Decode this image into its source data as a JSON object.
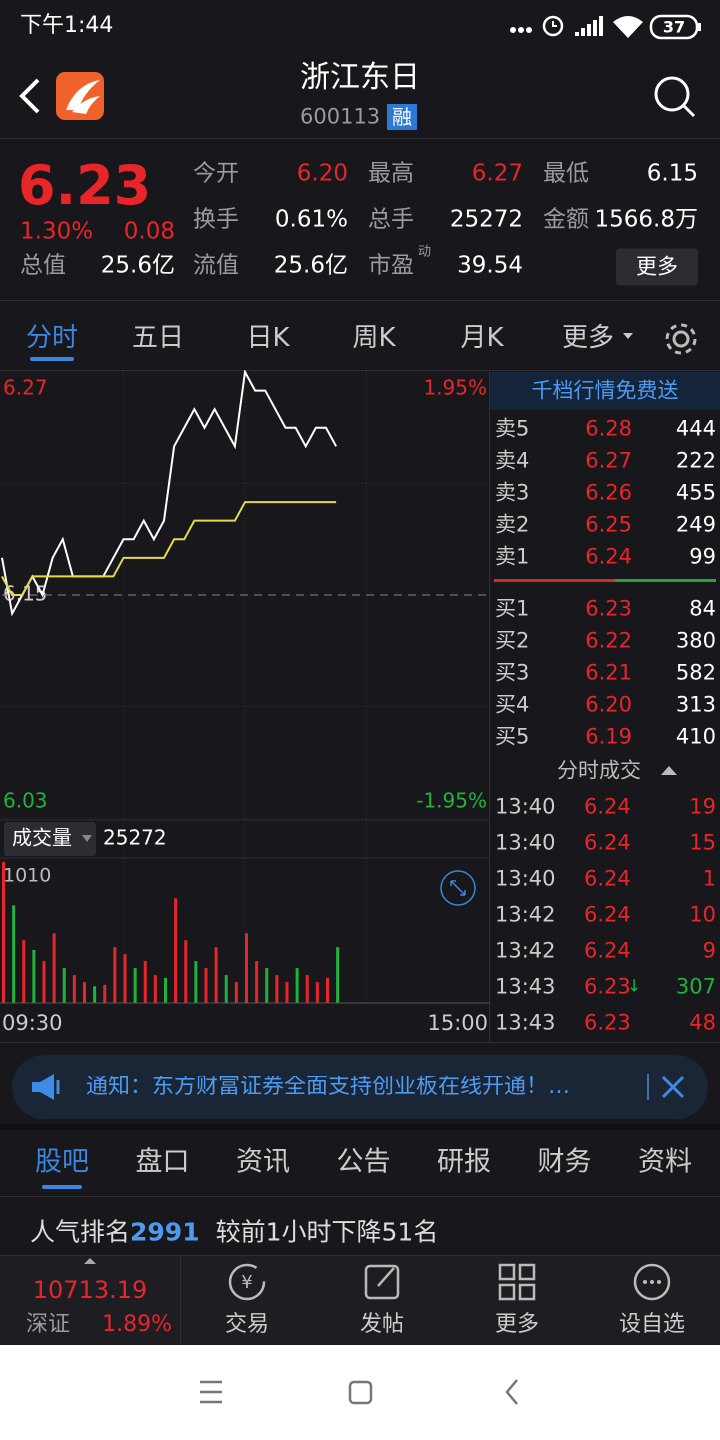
{
  "status_bar": {
    "time": "下午1:44",
    "battery": "37"
  },
  "header": {
    "title": "浙江东日",
    "code": "600113",
    "badge": "融"
  },
  "quote": {
    "price": "6.23",
    "change_pct": "1.30%",
    "change": "0.08",
    "fields": [
      {
        "label": "今开",
        "value": "6.20",
        "color": "#e8262a"
      },
      {
        "label": "最高",
        "value": "6.27",
        "color": "#e8262a"
      },
      {
        "label": "最低",
        "value": "6.15",
        "color": "#ffffff"
      },
      {
        "label": "换手",
        "value": "0.61%",
        "color": "#ffffff"
      },
      {
        "label": "总手",
        "value": "25272",
        "color": "#ffffff"
      },
      {
        "label": "金额",
        "value": "1566.8万",
        "color": "#ffffff"
      },
      {
        "label": "总值",
        "value": "25.6亿",
        "color": "#ffffff"
      },
      {
        "label": "流值",
        "value": "25.6亿",
        "color": "#ffffff"
      },
      {
        "label": "市盈",
        "label_sup": "动",
        "value": "39.54",
        "color": "#ffffff"
      }
    ],
    "more_button": "更多"
  },
  "chart_tabs": [
    "分时",
    "五日",
    "日K",
    "周K",
    "月K",
    "更多"
  ],
  "intraday_chart": {
    "type": "line",
    "x": [
      0,
      5,
      10,
      15,
      20,
      25,
      30,
      35,
      40,
      45,
      50,
      55,
      60,
      65,
      70,
      75,
      80,
      85,
      90,
      95,
      100,
      105,
      110,
      115,
      120,
      125,
      130,
      135,
      140,
      145,
      150,
      155,
      160,
      165
    ],
    "xlim": [
      0,
      240
    ],
    "xticks": [
      {
        "value": 0,
        "label": "09:30"
      },
      {
        "value": 240,
        "label": "15:00"
      }
    ],
    "ylim": [
      6.03,
      6.27
    ],
    "yticks": [
      6.03,
      6.15,
      6.27
    ],
    "y2lim": [
      -1.95,
      1.95
    ],
    "y2ticks": [
      {
        "value": -1.95,
        "label": "-1.95%"
      },
      {
        "value": 1.95,
        "label": "1.95%"
      }
    ],
    "series": [
      {
        "color": "#ffffff",
        "values": [
          6.17,
          6.14,
          6.15,
          6.16,
          6.15,
          6.17,
          6.18,
          6.16,
          6.16,
          6.16,
          6.16,
          6.17,
          6.18,
          6.18,
          6.19,
          6.18,
          6.19,
          6.23,
          6.24,
          6.25,
          6.24,
          6.25,
          6.24,
          6.23,
          6.27,
          6.26,
          6.26,
          6.25,
          6.24,
          6.24,
          6.23,
          6.24,
          6.24,
          6.23
        ]
      },
      {
        "color": "#e8d84a",
        "values": [
          6.16,
          6.15,
          6.15,
          6.16,
          6.16,
          6.16,
          6.16,
          6.16,
          6.16,
          6.16,
          6.16,
          6.16,
          6.17,
          6.17,
          6.17,
          6.17,
          6.17,
          6.18,
          6.18,
          6.19,
          6.19,
          6.19,
          6.19,
          6.19,
          6.2,
          6.2,
          6.2,
          6.2,
          6.2,
          6.2,
          6.2,
          6.2,
          6.2,
          6.2
        ]
      }
    ]
  },
  "volume_chart": {
    "type": "bar",
    "selector": "成交量",
    "total": "25272",
    "x": [
      0,
      5,
      10,
      15,
      20,
      25,
      30,
      35,
      40,
      45,
      50,
      55,
      60,
      65,
      70,
      75,
      80,
      85,
      90,
      95,
      100,
      105,
      110,
      115,
      120,
      125,
      130,
      135,
      140,
      145,
      150,
      155,
      160,
      165
    ],
    "xlim": [
      0,
      240
    ],
    "ylim": [
      0,
      1010
    ],
    "yticks": [
      1010
    ],
    "values": [
      1010,
      700,
      450,
      380,
      300,
      500,
      250,
      200,
      150,
      120,
      130,
      400,
      350,
      250,
      300,
      200,
      180,
      750,
      450,
      300,
      250,
      400,
      200,
      150,
      500,
      300,
      250,
      200,
      150,
      250,
      200,
      150,
      180,
      400
    ],
    "colors": [
      "#e8262a",
      "#1fb33a",
      "#e8262a",
      "#1fb33a",
      "#e8262a",
      "#e8262a",
      "#1fb33a",
      "#e8262a",
      "#e8262a",
      "#1fb33a",
      "#e8262a",
      "#e8262a",
      "#e8262a",
      "#1fb33a",
      "#e8262a",
      "#e8262a",
      "#1fb33a",
      "#e8262a",
      "#e8262a",
      "#1fb33a",
      "#e8262a",
      "#e8262a",
      "#1fb33a",
      "#e8262a",
      "#e8262a",
      "#e8262a",
      "#1fb33a",
      "#e8262a",
      "#e8262a",
      "#1fb33a",
      "#e8262a",
      "#e8262a",
      "#e8262a",
      "#1fb33a"
    ]
  },
  "order_book": {
    "title": "千档行情免费送",
    "asks": [
      {
        "label": "卖5",
        "price": "6.28",
        "volume": "444"
      },
      {
        "label": "卖4",
        "price": "6.27",
        "volume": "222"
      },
      {
        "label": "卖3",
        "price": "6.26",
        "volume": "455"
      },
      {
        "label": "卖2",
        "price": "6.25",
        "volume": "249"
      },
      {
        "label": "卖1",
        "price": "6.24",
        "volume": "99"
      }
    ],
    "bids": [
      {
        "label": "买1",
        "price": "6.23",
        "volume": "84"
      },
      {
        "label": "买2",
        "price": "6.22",
        "volume": "380"
      },
      {
        "label": "买3",
        "price": "6.21",
        "volume": "582"
      },
      {
        "label": "买4",
        "price": "6.20",
        "volume": "313"
      },
      {
        "label": "买5",
        "price": "6.19",
        "volume": "410"
      }
    ]
  },
  "trades": {
    "title": "分时成交",
    "rows": [
      {
        "time": "13:40",
        "price": "6.24",
        "volume": "19",
        "color": "#e8262a"
      },
      {
        "time": "13:40",
        "price": "6.24",
        "volume": "15",
        "color": "#e8262a"
      },
      {
        "time": "13:40",
        "price": "6.24",
        "volume": "1",
        "color": "#e8262a"
      },
      {
        "time": "13:42",
        "price": "6.24",
        "volume": "10",
        "color": "#e8262a"
      },
      {
        "time": "13:42",
        "price": "6.24",
        "volume": "9",
        "color": "#e8262a"
      },
      {
        "time": "13:43",
        "price": "6.23",
        "arrow": "↓",
        "volume": "307",
        "color": "#1fb33a"
      },
      {
        "time": "13:43",
        "price": "6.23",
        "volume": "48",
        "color": "#e8262a"
      }
    ]
  },
  "notice": "通知：东方财富证券全面支持创业板在线开通！…",
  "info_tabs": [
    "股吧",
    "盘口",
    "资讯",
    "公告",
    "研报",
    "财务",
    "资料"
  ],
  "ranking": {
    "prefix": "人气排名",
    "rank": "2991",
    "suffix": "较前1小时下降51名"
  },
  "bottom_nav": {
    "index_value": "10713.19",
    "index_name": "深证",
    "index_change": "1.89%",
    "items": [
      "交易",
      "发帖",
      "更多",
      "设自选"
    ]
  }
}
